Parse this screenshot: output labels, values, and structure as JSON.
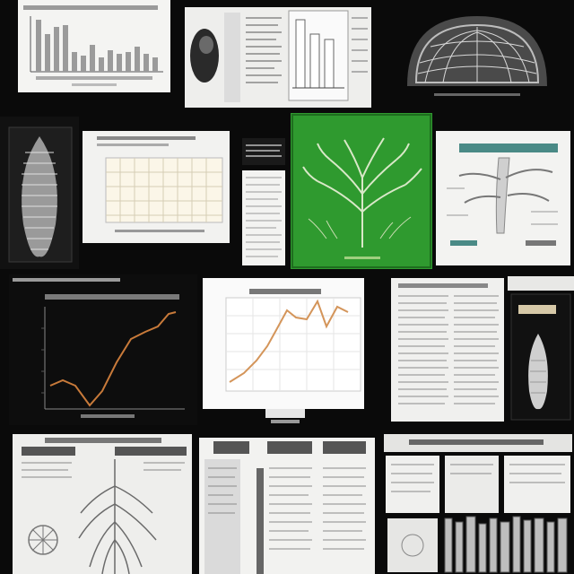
{
  "collage": {
    "tiles": [
      {
        "name": "bar-chart-panel",
        "icon": "bar-chart-icon"
      },
      {
        "name": "bird-specimen-panel",
        "icon": "bird-icon"
      },
      {
        "name": "radiolarian-panel",
        "icon": "dome-specimen-icon"
      },
      {
        "name": "worm-specimen-panel",
        "icon": "segmented-specimen-icon"
      },
      {
        "name": "grid-table-panel",
        "icon": "table-icon"
      },
      {
        "name": "narrow-text-panel",
        "icon": "text-column-icon"
      },
      {
        "name": "green-tree-panel",
        "icon": "tree-icon"
      },
      {
        "name": "plant-diagram-panel",
        "icon": "botanical-diagram-icon"
      },
      {
        "name": "dark-line-chart-panel",
        "icon": "line-chart-icon"
      },
      {
        "name": "white-line-chart-panel",
        "icon": "line-chart-icon"
      },
      {
        "name": "text-document-panel",
        "icon": "document-icon"
      },
      {
        "name": "seed-specimen-panel",
        "icon": "pod-specimen-icon"
      },
      {
        "name": "root-diagram-panel",
        "icon": "root-diagram-icon"
      },
      {
        "name": "multi-column-document-panel",
        "icon": "document-icon"
      },
      {
        "name": "document-bookshelf-panel",
        "icon": "bookshelf-icon"
      }
    ]
  },
  "colors": {
    "frame": "#0a0a0a",
    "paper": "#f2f2f0",
    "green_panel": "#2f9a2f",
    "plot_line_dark": "#c87a3a",
    "plot_line_light": "#d4955a"
  }
}
